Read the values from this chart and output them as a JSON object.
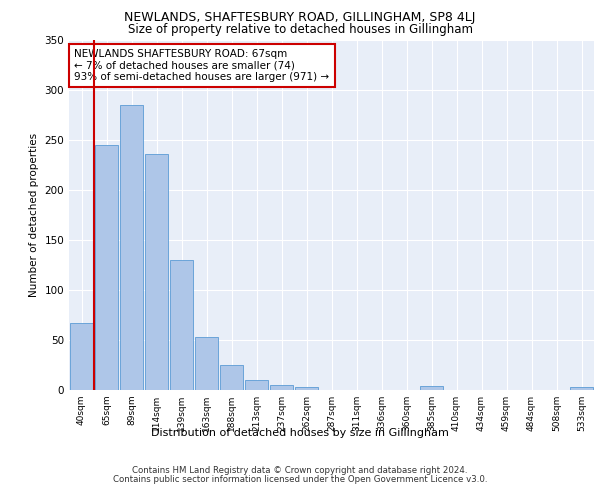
{
  "title": "NEWLANDS, SHAFTESBURY ROAD, GILLINGHAM, SP8 4LJ",
  "subtitle": "Size of property relative to detached houses in Gillingham",
  "xlabel": "Distribution of detached houses by size in Gillingham",
  "ylabel": "Number of detached properties",
  "categories": [
    "40sqm",
    "65sqm",
    "89sqm",
    "114sqm",
    "139sqm",
    "163sqm",
    "188sqm",
    "213sqm",
    "237sqm",
    "262sqm",
    "287sqm",
    "311sqm",
    "336sqm",
    "360sqm",
    "385sqm",
    "410sqm",
    "434sqm",
    "459sqm",
    "484sqm",
    "508sqm",
    "533sqm"
  ],
  "values": [
    67,
    245,
    285,
    236,
    130,
    53,
    25,
    10,
    5,
    3,
    0,
    0,
    0,
    0,
    4,
    0,
    0,
    0,
    0,
    0,
    3
  ],
  "bar_color": "#aec6e8",
  "bar_edge_color": "#5b9bd5",
  "marker_col_idx": 1,
  "marker_color": "#cc0000",
  "annotation_text": "NEWLANDS SHAFTESBURY ROAD: 67sqm\n← 7% of detached houses are smaller (74)\n93% of semi-detached houses are larger (971) →",
  "annotation_box_color": "#ffffff",
  "annotation_box_edge": "#cc0000",
  "ylim": [
    0,
    350
  ],
  "yticks": [
    0,
    50,
    100,
    150,
    200,
    250,
    300,
    350
  ],
  "background_color": "#e8eef8",
  "grid_color": "#ffffff",
  "footer_line1": "Contains HM Land Registry data © Crown copyright and database right 2024.",
  "footer_line2": "Contains public sector information licensed under the Open Government Licence v3.0."
}
